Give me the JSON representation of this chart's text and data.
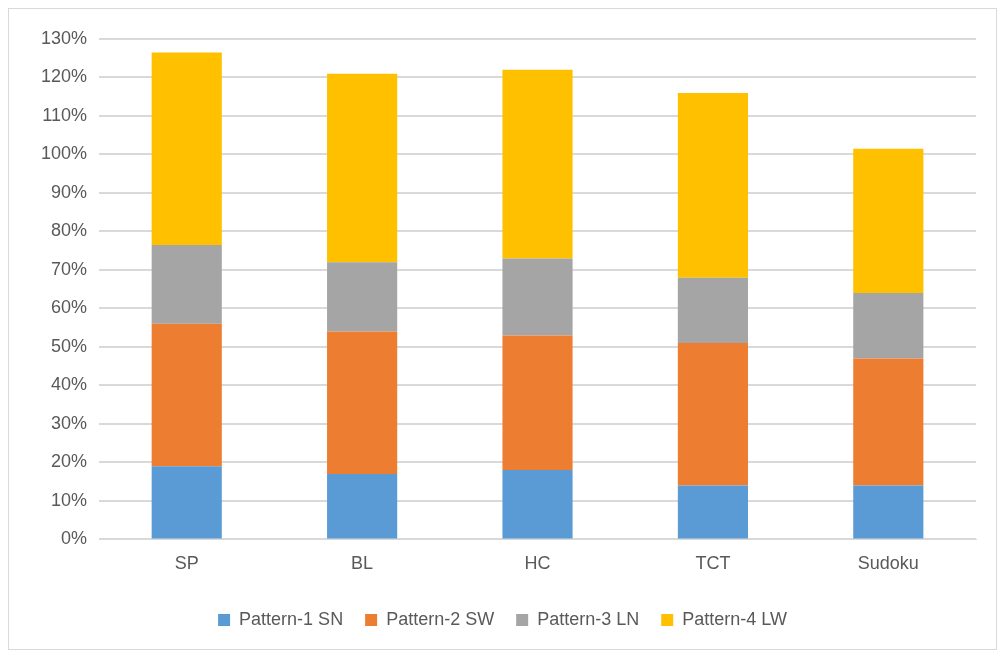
{
  "chart_data": {
    "type": "bar",
    "stacked": true,
    "categories": [
      "SP",
      "BL",
      "HC",
      "TCT",
      "Sudoku"
    ],
    "series": [
      {
        "name": "Pattern-1 SN",
        "color": "#5b9bd5",
        "values": [
          19,
          17,
          18,
          14,
          14
        ]
      },
      {
        "name": "Pattern-2 SW",
        "color": "#ed7d31",
        "values": [
          37,
          37,
          35,
          37,
          33
        ]
      },
      {
        "name": "Pattern-3 LN",
        "color": "#a5a5a5",
        "values": [
          20.5,
          18,
          20,
          17,
          17
        ]
      },
      {
        "name": "Pattern-4 LW",
        "color": "#ffc000",
        "values": [
          50,
          49,
          49,
          48,
          37.5
        ]
      }
    ],
    "ylim": [
      0,
      130
    ],
    "yticks": [
      {
        "value": 0,
        "label": "0%"
      },
      {
        "value": 10,
        "label": "10%"
      },
      {
        "value": 20,
        "label": "20%"
      },
      {
        "value": 30,
        "label": "30%"
      },
      {
        "value": 40,
        "label": "40%"
      },
      {
        "value": 50,
        "label": "50%"
      },
      {
        "value": 60,
        "label": "60%"
      },
      {
        "value": 70,
        "label": "70%"
      },
      {
        "value": 80,
        "label": "80%"
      },
      {
        "value": 90,
        "label": "90%"
      },
      {
        "value": 100,
        "label": "100%"
      },
      {
        "value": 110,
        "label": "110%"
      },
      {
        "value": 120,
        "label": "120%"
      },
      {
        "value": 130,
        "label": "130%"
      }
    ],
    "grid": "y",
    "legend": "bottom"
  }
}
